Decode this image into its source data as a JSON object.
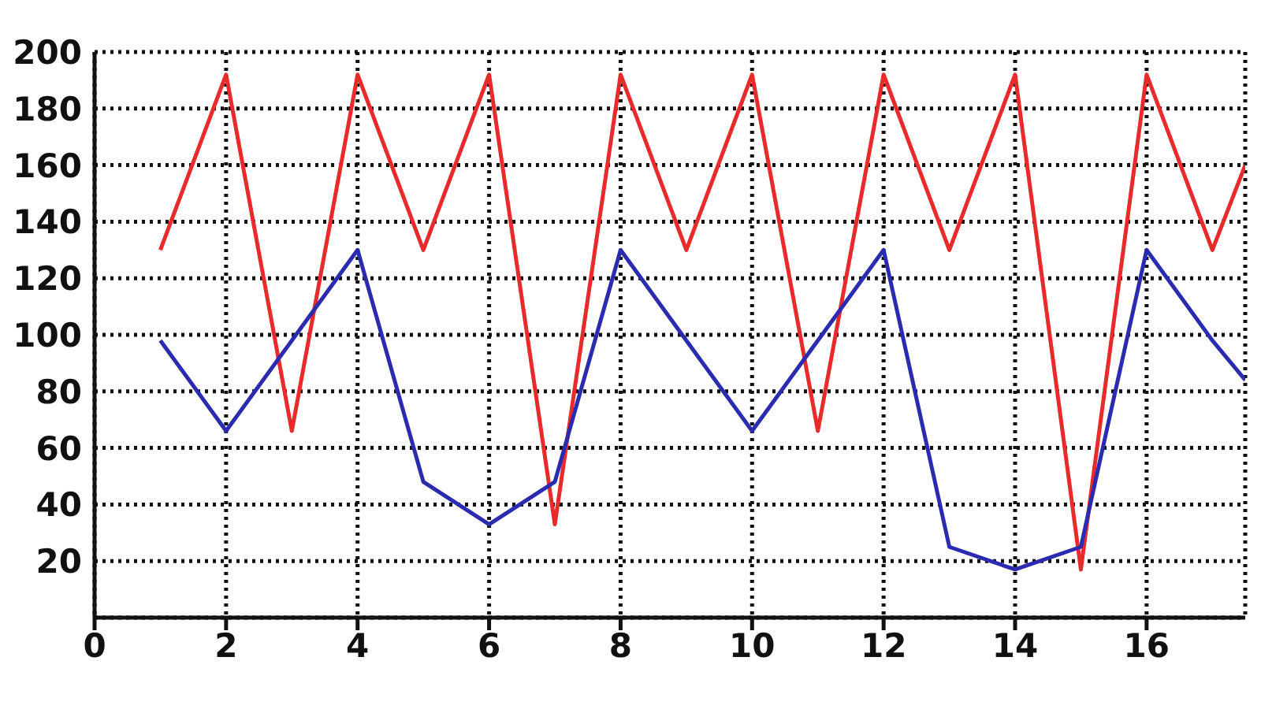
{
  "chart_data": {
    "type": "line",
    "x": [
      1,
      2,
      3,
      4,
      5,
      6,
      7,
      8,
      9,
      10,
      11,
      12,
      13,
      14,
      15,
      16,
      17,
      17.5
    ],
    "series": [
      {
        "color": "#e82a2a",
        "values": [
          130,
          192,
          66,
          192,
          130,
          192,
          33,
          192,
          130,
          192,
          66,
          192,
          130,
          192,
          17,
          192,
          130,
          160
        ]
      },
      {
        "color": "#2b2bb0",
        "values": [
          98,
          66,
          98,
          130,
          48,
          33,
          48,
          130,
          98,
          66,
          98,
          130,
          25,
          17,
          25,
          130,
          98,
          84
        ]
      }
    ],
    "xlim": [
      0,
      17.5
    ],
    "xticks": [
      0,
      2,
      4,
      6,
      8,
      10,
      12,
      14,
      16
    ],
    "ylim": [
      0,
      200
    ],
    "yticks": [
      20,
      40,
      60,
      80,
      100,
      120,
      140,
      160,
      180,
      200
    ],
    "grid": true,
    "marker": "none",
    "line_style": "solid"
  }
}
